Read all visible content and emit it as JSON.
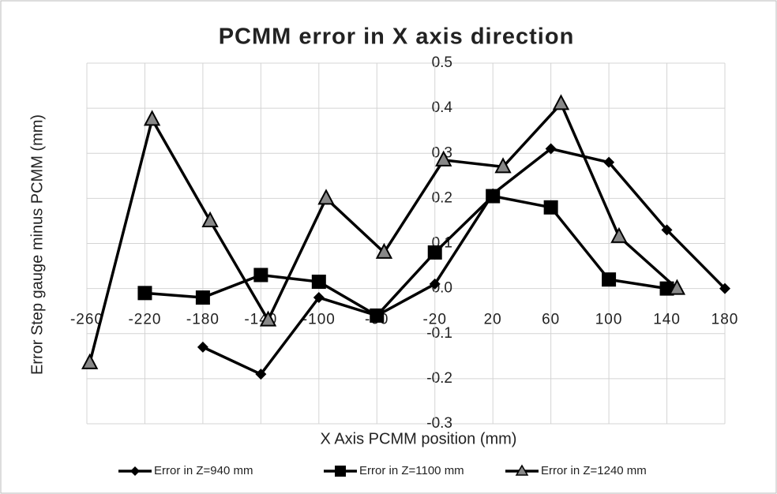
{
  "chart_data": {
    "type": "line",
    "title": "PCMM error in X axis direction",
    "x_label": "X Axis PCMM position (mm)",
    "y_label": "Error Step gauge minus PCMM (mm)",
    "xlim": [
      -260,
      180
    ],
    "xticks": [
      -260,
      -220,
      -180,
      -140,
      -100,
      -60,
      -20,
      20,
      60,
      100,
      140,
      180
    ],
    "ylim": [
      -0.3,
      0.5
    ],
    "yticks": [
      {
        "value": -0.3,
        "label": "-0.3"
      },
      {
        "value": -0.2,
        "label": "-0.2"
      },
      {
        "value": -0.1,
        "label": "-0.1"
      },
      {
        "value": 0,
        "label": "0.0"
      },
      0.1,
      0.2,
      0.3,
      0.4,
      0.5
    ],
    "grid": true,
    "legend": "bottom",
    "series": [
      {
        "name": "Error in Z=940 mm",
        "color": "#000000",
        "marker": "diamond",
        "x": [
          -180,
          -140,
          -100,
          -60,
          -20,
          20,
          60,
          100,
          140,
          180
        ],
        "values": [
          -0.13,
          -0.19,
          -0.02,
          -0.06,
          0.01,
          0.21,
          0.31,
          0.28,
          0.13,
          0.0
        ]
      },
      {
        "name": "Error in Z=1100 mm",
        "color": "#000000",
        "marker": "square",
        "x": [
          -220,
          -180,
          -140,
          -100,
          -60,
          -20,
          20,
          60,
          100,
          140
        ],
        "values": [
          -0.01,
          -0.02,
          0.03,
          0.015,
          -0.06,
          0.08,
          0.205,
          0.18,
          0.02,
          0.0
        ]
      },
      {
        "name": "Error in Z=1240 mm",
        "color": "#000000",
        "marker": "triangle",
        "x": [
          -258,
          -215,
          -175,
          -135,
          -95,
          -55,
          -14,
          27,
          67,
          107,
          147
        ],
        "values": [
          -0.165,
          0.375,
          0.15,
          -0.07,
          0.2,
          0.08,
          0.285,
          0.27,
          0.41,
          0.115,
          0.0
        ]
      }
    ]
  }
}
